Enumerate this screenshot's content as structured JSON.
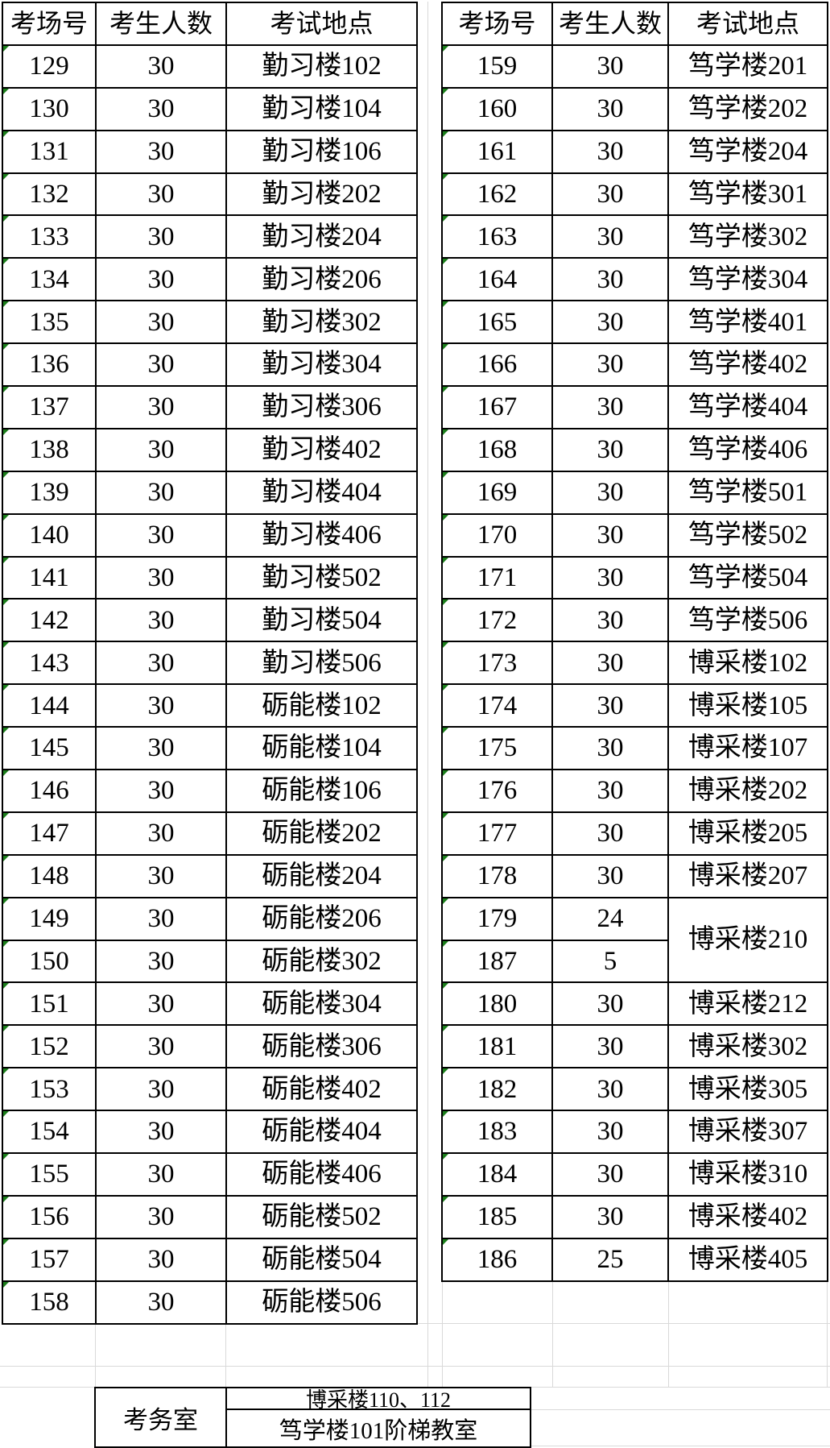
{
  "headers": {
    "room": "考场号",
    "count": "考生人数",
    "location": "考试地点"
  },
  "left_table": {
    "rows": [
      {
        "room": "129",
        "count": "30",
        "location": "勤习楼102"
      },
      {
        "room": "130",
        "count": "30",
        "location": "勤习楼104"
      },
      {
        "room": "131",
        "count": "30",
        "location": "勤习楼106"
      },
      {
        "room": "132",
        "count": "30",
        "location": "勤习楼202"
      },
      {
        "room": "133",
        "count": "30",
        "location": "勤习楼204"
      },
      {
        "room": "134",
        "count": "30",
        "location": "勤习楼206"
      },
      {
        "room": "135",
        "count": "30",
        "location": "勤习楼302"
      },
      {
        "room": "136",
        "count": "30",
        "location": "勤习楼304"
      },
      {
        "room": "137",
        "count": "30",
        "location": "勤习楼306"
      },
      {
        "room": "138",
        "count": "30",
        "location": "勤习楼402"
      },
      {
        "room": "139",
        "count": "30",
        "location": "勤习楼404"
      },
      {
        "room": "140",
        "count": "30",
        "location": "勤习楼406"
      },
      {
        "room": "141",
        "count": "30",
        "location": "勤习楼502"
      },
      {
        "room": "142",
        "count": "30",
        "location": "勤习楼504"
      },
      {
        "room": "143",
        "count": "30",
        "location": "勤习楼506"
      },
      {
        "room": "144",
        "count": "30",
        "location": "砺能楼102"
      },
      {
        "room": "145",
        "count": "30",
        "location": "砺能楼104"
      },
      {
        "room": "146",
        "count": "30",
        "location": "砺能楼106"
      },
      {
        "room": "147",
        "count": "30",
        "location": "砺能楼202"
      },
      {
        "room": "148",
        "count": "30",
        "location": "砺能楼204"
      },
      {
        "room": "149",
        "count": "30",
        "location": "砺能楼206"
      },
      {
        "room": "150",
        "count": "30",
        "location": "砺能楼302"
      },
      {
        "room": "151",
        "count": "30",
        "location": "砺能楼304"
      },
      {
        "room": "152",
        "count": "30",
        "location": "砺能楼306"
      },
      {
        "room": "153",
        "count": "30",
        "location": "砺能楼402"
      },
      {
        "room": "154",
        "count": "30",
        "location": "砺能楼404"
      },
      {
        "room": "155",
        "count": "30",
        "location": "砺能楼406"
      },
      {
        "room": "156",
        "count": "30",
        "location": "砺能楼502"
      },
      {
        "room": "157",
        "count": "30",
        "location": "砺能楼504"
      },
      {
        "room": "158",
        "count": "30",
        "location": "砺能楼506"
      }
    ]
  },
  "right_table": {
    "rows": [
      {
        "room": "159",
        "count": "30",
        "location": "笃学楼201"
      },
      {
        "room": "160",
        "count": "30",
        "location": "笃学楼202"
      },
      {
        "room": "161",
        "count": "30",
        "location": "笃学楼204"
      },
      {
        "room": "162",
        "count": "30",
        "location": "笃学楼301"
      },
      {
        "room": "163",
        "count": "30",
        "location": "笃学楼302"
      },
      {
        "room": "164",
        "count": "30",
        "location": "笃学楼304"
      },
      {
        "room": "165",
        "count": "30",
        "location": "笃学楼401"
      },
      {
        "room": "166",
        "count": "30",
        "location": "笃学楼402"
      },
      {
        "room": "167",
        "count": "30",
        "location": "笃学楼404"
      },
      {
        "room": "168",
        "count": "30",
        "location": "笃学楼406"
      },
      {
        "room": "169",
        "count": "30",
        "location": "笃学楼501"
      },
      {
        "room": "170",
        "count": "30",
        "location": "笃学楼502"
      },
      {
        "room": "171",
        "count": "30",
        "location": "笃学楼504"
      },
      {
        "room": "172",
        "count": "30",
        "location": "笃学楼506"
      },
      {
        "room": "173",
        "count": "30",
        "location": "博采楼102"
      },
      {
        "room": "174",
        "count": "30",
        "location": "博采楼105"
      },
      {
        "room": "175",
        "count": "30",
        "location": "博采楼107"
      },
      {
        "room": "176",
        "count": "30",
        "location": "博采楼202"
      },
      {
        "room": "177",
        "count": "30",
        "location": "博采楼205"
      },
      {
        "room": "178",
        "count": "30",
        "location": "博采楼207"
      },
      {
        "room": "179",
        "count": "24",
        "location": "博采楼210",
        "location_rowspan": 2
      },
      {
        "room": "187",
        "count": "5",
        "location": null
      },
      {
        "room": "180",
        "count": "30",
        "location": "博采楼212"
      },
      {
        "room": "181",
        "count": "30",
        "location": "博采楼302"
      },
      {
        "room": "182",
        "count": "30",
        "location": "博采楼305"
      },
      {
        "room": "183",
        "count": "30",
        "location": "博采楼307"
      },
      {
        "room": "184",
        "count": "30",
        "location": "博采楼310"
      },
      {
        "room": "185",
        "count": "30",
        "location": "博采楼402"
      },
      {
        "room": "186",
        "count": "25",
        "location": "博采楼405"
      }
    ]
  },
  "footer": {
    "label": "考务室",
    "locations": [
      "博采楼110、112",
      "笃学楼101阶梯教室"
    ]
  },
  "icons": {
    "corner_flag": "green-corner-triangle"
  },
  "colors": {
    "border": "#000000",
    "text": "#000000",
    "background": "#ffffff",
    "flag_green": "#1b7e1b",
    "gridline": "#d9d9d9"
  }
}
